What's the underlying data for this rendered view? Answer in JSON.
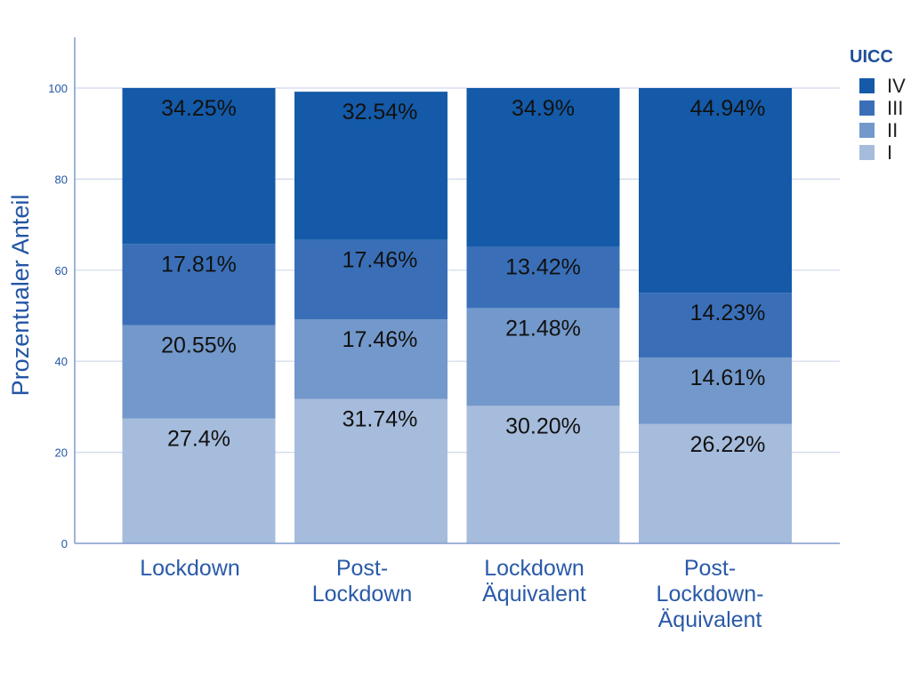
{
  "chart_data": {
    "type": "bar",
    "stacked": true,
    "ylabel": "Prozentualer Anteil",
    "ylim": [
      0,
      110
    ],
    "yticks": [
      "0",
      "20",
      "40",
      "60",
      "80",
      "100"
    ],
    "grid": true,
    "categories": [
      [
        "Lockdown"
      ],
      [
        "Post-",
        "Lockdown"
      ],
      [
        "Lockdown",
        "Äquivalent"
      ],
      [
        "Post-",
        "Lockdown-",
        "Äquivalent"
      ]
    ],
    "legend": {
      "title": "UICC",
      "placement": "right"
    },
    "series": [
      {
        "name": "I",
        "color": "#a6bcdc",
        "values": [
          27.4,
          31.74,
          30.2,
          26.22
        ],
        "labels": [
          "27.4%",
          "31.74%",
          "30.20%",
          "26.22%"
        ]
      },
      {
        "name": "II",
        "color": "#7398cb",
        "values": [
          20.55,
          17.46,
          21.48,
          14.61
        ],
        "labels": [
          "20.55%",
          "17.46%",
          "21.48%",
          "14.61%"
        ]
      },
      {
        "name": "III",
        "color": "#3a6fb8",
        "values": [
          17.81,
          17.46,
          13.42,
          14.23
        ],
        "labels": [
          "17.81%",
          "17.46%",
          "13.42%",
          "14.23%"
        ]
      },
      {
        "name": "IV",
        "color": "#145aa8",
        "values": [
          34.25,
          32.54,
          34.9,
          44.94
        ],
        "labels": [
          "34.25%",
          "32.54%",
          "34.9%",
          "44.94%"
        ]
      }
    ]
  }
}
